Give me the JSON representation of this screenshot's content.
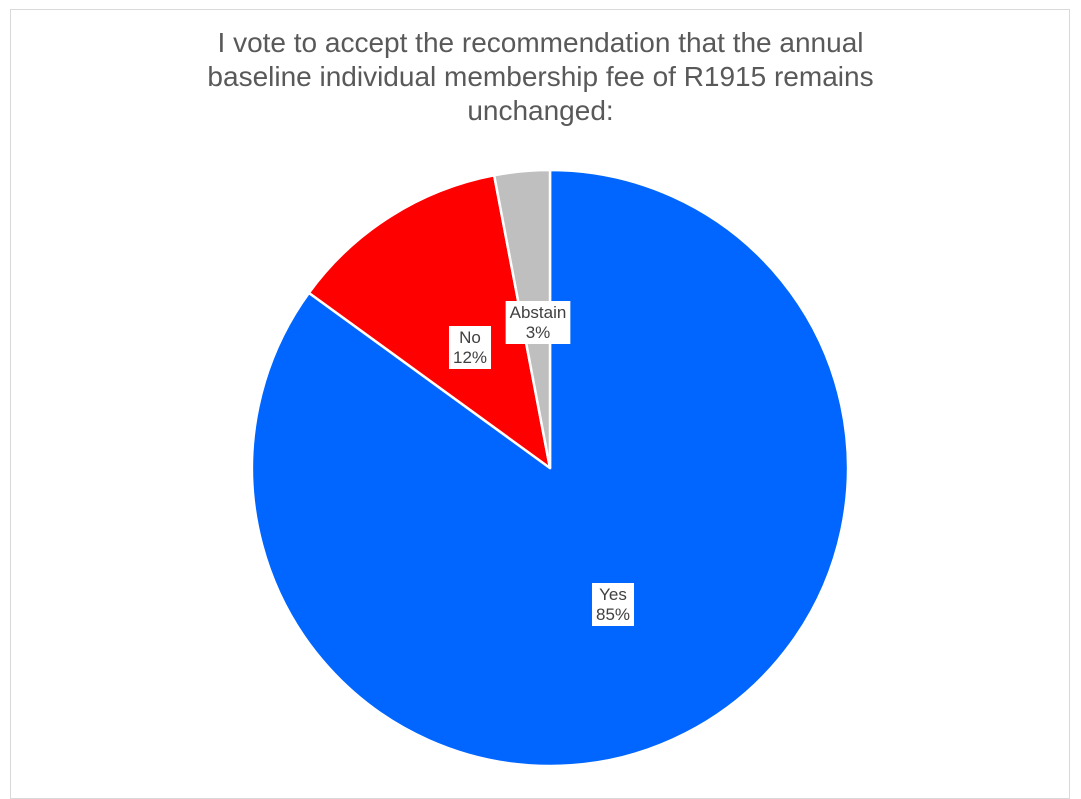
{
  "chart_data": {
    "type": "pie",
    "title_lines": [
      "I vote to accept the recommendation that the annual",
      "baseline individual membership fee of R1915 remains",
      "unchanged:"
    ],
    "slices": [
      {
        "label": "Yes",
        "value": 85,
        "display": "85%",
        "color": "#0066ff"
      },
      {
        "label": "No",
        "value": 12,
        "display": "12%",
        "color": "#ff0000"
      },
      {
        "label": "Abstain",
        "value": 3,
        "display": "3%",
        "color": "#bfbfbf"
      }
    ],
    "legend": "none",
    "grid": false
  }
}
